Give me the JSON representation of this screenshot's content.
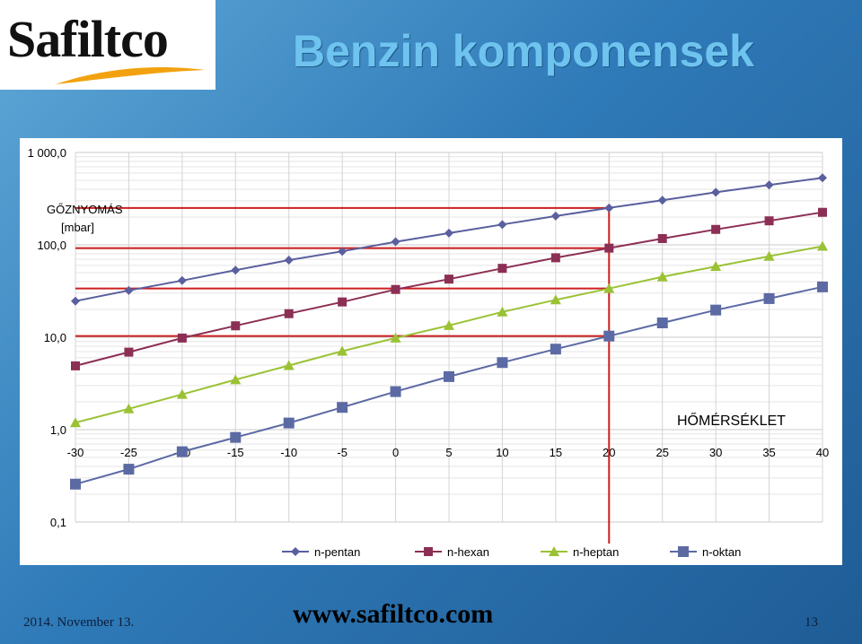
{
  "logo": {
    "text": "Safiltco"
  },
  "slide": {
    "title": "Benzin komponensek"
  },
  "footer": {
    "date": "2014. November 13.",
    "url": "www.safiltco.com",
    "page": "13"
  },
  "chart_data": {
    "type": "line",
    "ylabel_line1": "GŐZNYOMÁS",
    "ylabel_line2": "[mbar]",
    "xlabel": "HŐMÉRSÉKLET",
    "y_scale": "log",
    "ylim": [
      0.1,
      1000
    ],
    "yticks": [
      "1 000,0",
      "100,0",
      "10,0",
      "1,0",
      "0,1"
    ],
    "xlim": [
      -30,
      40
    ],
    "x_tick_labels": [
      "-30",
      "-25",
      "-20",
      "-15",
      "-10",
      "-5",
      "0",
      "5",
      "10",
      "15",
      "20",
      "25",
      "30",
      "35",
      "40"
    ],
    "grid": true,
    "legend_position": "bottom",
    "x": [
      -30,
      -25,
      -20,
      -15,
      -10,
      -5,
      0,
      5,
      10,
      15,
      20,
      25,
      30,
      35,
      40
    ],
    "series": [
      {
        "name": "n-pentan",
        "marker": "diamond",
        "color": "#5a5f9e",
        "values": [
          24.6,
          32.1,
          41.1,
          53.2,
          68.4,
          85.1,
          108,
          134,
          166,
          205,
          251,
          304,
          371,
          445,
          532
        ]
      },
      {
        "name": "n-hexan",
        "marker": "square",
        "color": "#8c2f54",
        "values": [
          4.9,
          6.9,
          9.8,
          13.3,
          18.0,
          24.1,
          32.9,
          42.6,
          55.7,
          72.5,
          92.2,
          117,
          147,
          182,
          225
        ]
      },
      {
        "name": "n-heptan",
        "marker": "triangle",
        "color": "#9ac234",
        "values": [
          1.19,
          1.68,
          2.41,
          3.47,
          4.95,
          7.07,
          9.82,
          13.4,
          18.8,
          25.4,
          33.7,
          45.1,
          58.4,
          75.3,
          96.8
        ]
      },
      {
        "name": "n-oktan",
        "marker": "square",
        "color": "#5c6aa4",
        "values": [
          0.257,
          0.373,
          0.577,
          0.824,
          1.18,
          1.74,
          2.58,
          3.75,
          5.32,
          7.44,
          10.3,
          14.3,
          19.7,
          26.2,
          35.1
        ]
      }
    ],
    "reference_lines": {
      "color": "#cc1f1f",
      "horizontal_values": [
        251,
        92.2,
        33.7,
        10.3
      ],
      "vertical_x": 20
    }
  }
}
